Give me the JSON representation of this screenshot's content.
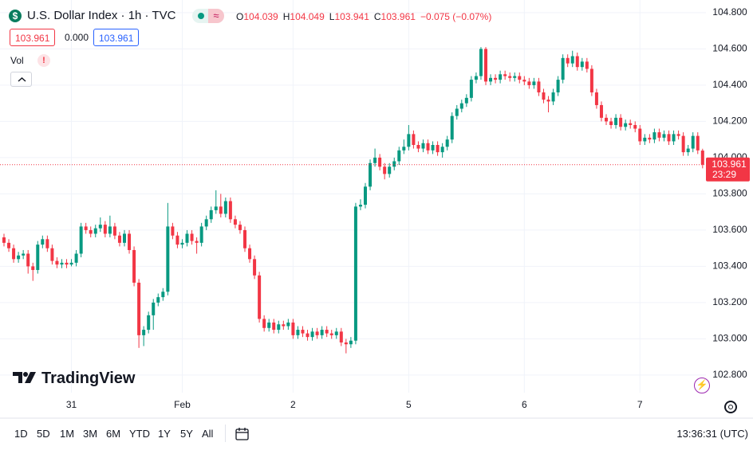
{
  "header": {
    "symbol_icon": "$",
    "title": "U.S. Dollar Index · 1h · TVC",
    "ohlc": [
      {
        "label": "O",
        "value": "104.039"
      },
      {
        "label": "H",
        "value": "104.049"
      },
      {
        "label": "L",
        "value": "103.941"
      },
      {
        "label": "C",
        "value": "103.961"
      }
    ],
    "change": "−0.075 (−0.07%)",
    "bid": "103.961",
    "spread": "0.000",
    "ask": "103.961",
    "volume_label": "Vol",
    "volume_warning": "!"
  },
  "logo": "TradingView",
  "toolbar": {
    "ranges": [
      "1D",
      "5D",
      "1M",
      "3M",
      "6M",
      "YTD",
      "1Y",
      "5Y",
      "All"
    ],
    "clock": "13:36:31 (UTC)"
  },
  "chart_data": {
    "type": "candlestick",
    "title": "U.S. Dollar Index · 1h · TVC",
    "up_color": "#089981",
    "down_color": "#f23645",
    "ylim": [
      102.703,
      104.87
    ],
    "yticks": [
      {
        "value": 102.8,
        "label": "102.800"
      },
      {
        "value": 103.0,
        "label": "103.000"
      },
      {
        "value": 103.2,
        "label": "103.200"
      },
      {
        "value": 103.4,
        "label": "103.400"
      },
      {
        "value": 103.6,
        "label": "103.600"
      },
      {
        "value": 103.8,
        "label": "103.800"
      },
      {
        "value": 104.0,
        "label": "104.000"
      },
      {
        "value": 104.2,
        "label": "104.200"
      },
      {
        "value": 104.4,
        "label": "104.400"
      },
      {
        "value": 104.6,
        "label": "104.600"
      },
      {
        "value": 104.8,
        "label": "104.800"
      }
    ],
    "last_price": {
      "label": "103.961",
      "countdown": "23:29"
    },
    "categories": [
      null,
      null,
      null,
      null,
      null,
      null,
      null,
      null,
      null,
      null,
      null,
      null,
      null,
      null,
      "31",
      null,
      null,
      null,
      null,
      null,
      null,
      null,
      null,
      null,
      null,
      null,
      null,
      null,
      null,
      null,
      null,
      null,
      null,
      null,
      null,
      null,
      null,
      "Feb",
      null,
      null,
      null,
      null,
      null,
      null,
      null,
      null,
      null,
      null,
      null,
      null,
      null,
      null,
      null,
      null,
      null,
      null,
      null,
      null,
      null,
      null,
      "2",
      null,
      null,
      null,
      null,
      null,
      null,
      null,
      null,
      null,
      null,
      null,
      null,
      null,
      null,
      null,
      null,
      null,
      null,
      null,
      null,
      null,
      null,
      null,
      "5",
      null,
      null,
      null,
      null,
      null,
      null,
      null,
      null,
      null,
      null,
      null,
      null,
      null,
      null,
      null,
      null,
      null,
      null,
      null,
      null,
      null,
      null,
      null,
      "6",
      null,
      null,
      null,
      null,
      null,
      null,
      null,
      null,
      null,
      null,
      null,
      null,
      null,
      null,
      null,
      null,
      null,
      null,
      null,
      null,
      null,
      null,
      null,
      "7",
      null,
      null,
      null,
      null,
      null,
      null,
      null,
      null,
      null,
      null,
      null,
      null,
      null
    ],
    "ohlc": [
      [
        103.56,
        103.58,
        103.51,
        103.53
      ],
      [
        103.53,
        103.55,
        103.48,
        103.5
      ],
      [
        103.5,
        103.52,
        103.42,
        103.44
      ],
      [
        103.44,
        103.48,
        103.42,
        103.46
      ],
      [
        103.46,
        103.49,
        103.44,
        103.47
      ],
      [
        103.47,
        103.49,
        103.36,
        103.4
      ],
      [
        103.4,
        103.42,
        103.32,
        103.38
      ],
      [
        103.38,
        103.54,
        103.36,
        103.52
      ],
      [
        103.52,
        103.57,
        103.5,
        103.55
      ],
      [
        103.55,
        103.57,
        103.48,
        103.5
      ],
      [
        103.5,
        103.52,
        103.41,
        103.43
      ],
      [
        103.43,
        103.45,
        103.39,
        103.41
      ],
      [
        103.41,
        103.44,
        103.39,
        103.42
      ],
      [
        103.42,
        103.44,
        103.39,
        103.41
      ],
      [
        103.41,
        103.44,
        103.4,
        103.42
      ],
      [
        103.42,
        103.49,
        103.4,
        103.47
      ],
      [
        103.47,
        103.64,
        103.45,
        103.62
      ],
      [
        103.62,
        103.64,
        103.58,
        103.6
      ],
      [
        103.6,
        103.62,
        103.56,
        103.58
      ],
      [
        103.58,
        103.63,
        103.56,
        103.61
      ],
      [
        103.61,
        103.67,
        103.59,
        103.63
      ],
      [
        103.63,
        103.65,
        103.56,
        103.58
      ],
      [
        103.58,
        103.68,
        103.56,
        103.62
      ],
      [
        103.62,
        103.64,
        103.55,
        103.57
      ],
      [
        103.57,
        103.59,
        103.51,
        103.53
      ],
      [
        103.53,
        103.6,
        103.51,
        103.58
      ],
      [
        103.58,
        103.6,
        103.47,
        103.49
      ],
      [
        103.49,
        103.51,
        103.29,
        103.31
      ],
      [
        103.31,
        103.33,
        102.95,
        103.02
      ],
      [
        103.02,
        103.07,
        102.96,
        103.05
      ],
      [
        103.05,
        103.15,
        103.03,
        103.13
      ],
      [
        103.13,
        103.22,
        103.05,
        103.2
      ],
      [
        103.2,
        103.25,
        103.18,
        103.23
      ],
      [
        103.23,
        103.28,
        103.21,
        103.26
      ],
      [
        103.26,
        103.75,
        103.24,
        103.62
      ],
      [
        103.62,
        103.64,
        103.55,
        103.57
      ],
      [
        103.57,
        103.59,
        103.5,
        103.52
      ],
      [
        103.52,
        103.55,
        103.5,
        103.53
      ],
      [
        103.53,
        103.6,
        103.51,
        103.58
      ],
      [
        103.58,
        103.6,
        103.52,
        103.54
      ],
      [
        103.54,
        103.56,
        103.47,
        103.53
      ],
      [
        103.53,
        103.64,
        103.51,
        103.62
      ],
      [
        103.62,
        103.68,
        103.6,
        103.66
      ],
      [
        103.66,
        103.73,
        103.64,
        103.71
      ],
      [
        103.71,
        103.82,
        103.69,
        103.73
      ],
      [
        103.73,
        103.8,
        103.67,
        103.69
      ],
      [
        103.69,
        103.78,
        103.67,
        103.76
      ],
      [
        103.76,
        103.78,
        103.64,
        103.66
      ],
      [
        103.66,
        103.68,
        103.61,
        103.63
      ],
      [
        103.63,
        103.65,
        103.58,
        103.6
      ],
      [
        103.6,
        103.62,
        103.48,
        103.5
      ],
      [
        103.5,
        103.52,
        103.42,
        103.44
      ],
      [
        103.44,
        103.46,
        103.33,
        103.35
      ],
      [
        103.35,
        103.37,
        103.09,
        103.11
      ],
      [
        103.11,
        103.13,
        103.04,
        103.06
      ],
      [
        103.06,
        103.11,
        103.04,
        103.09
      ],
      [
        103.09,
        103.11,
        103.03,
        103.05
      ],
      [
        103.05,
        103.1,
        103.03,
        103.08
      ],
      [
        103.08,
        103.1,
        103.05,
        103.07
      ],
      [
        103.07,
        103.11,
        103.05,
        103.09
      ],
      [
        103.09,
        103.11,
        103.0,
        103.02
      ],
      [
        103.02,
        103.07,
        103.0,
        103.05
      ],
      [
        103.05,
        103.07,
        103.01,
        103.03
      ],
      [
        103.03,
        103.05,
        102.99,
        103.01
      ],
      [
        103.01,
        103.06,
        102.99,
        103.04
      ],
      [
        103.04,
        103.06,
        103.0,
        103.02
      ],
      [
        103.02,
        103.07,
        103.0,
        103.05
      ],
      [
        103.05,
        103.07,
        103.01,
        103.03
      ],
      [
        103.03,
        103.05,
        103.0,
        103.02
      ],
      [
        103.02,
        103.06,
        103.0,
        103.04
      ],
      [
        103.04,
        103.06,
        102.96,
        102.98
      ],
      [
        102.98,
        103.0,
        102.92,
        102.97
      ],
      [
        102.97,
        103.01,
        102.95,
        102.99
      ],
      [
        102.99,
        103.75,
        102.97,
        103.73
      ],
      [
        103.73,
        103.77,
        103.71,
        103.74
      ],
      [
        103.74,
        103.86,
        103.72,
        103.84
      ],
      [
        103.84,
        103.99,
        103.82,
        103.97
      ],
      [
        103.97,
        104.05,
        103.95,
        104.0
      ],
      [
        104.0,
        104.02,
        103.93,
        103.95
      ],
      [
        103.95,
        103.97,
        103.88,
        103.91
      ],
      [
        103.91,
        103.97,
        103.89,
        103.95
      ],
      [
        103.95,
        104.0,
        103.93,
        103.98
      ],
      [
        103.98,
        104.06,
        103.96,
        104.04
      ],
      [
        104.04,
        104.1,
        104.02,
        104.06
      ],
      [
        104.06,
        104.18,
        104.04,
        104.13
      ],
      [
        104.13,
        104.15,
        104.05,
        104.07
      ],
      [
        104.07,
        104.09,
        104.03,
        104.05
      ],
      [
        104.05,
        104.1,
        104.03,
        104.08
      ],
      [
        104.08,
        104.1,
        104.02,
        104.04
      ],
      [
        104.04,
        104.09,
        104.02,
        104.07
      ],
      [
        104.07,
        104.09,
        104.01,
        104.03
      ],
      [
        104.03,
        104.08,
        104.0,
        104.06
      ],
      [
        104.06,
        104.12,
        104.04,
        104.1
      ],
      [
        104.1,
        104.25,
        104.08,
        104.23
      ],
      [
        104.23,
        104.29,
        104.21,
        104.27
      ],
      [
        104.27,
        104.32,
        104.25,
        104.3
      ],
      [
        104.3,
        104.35,
        104.28,
        104.33
      ],
      [
        104.33,
        104.45,
        104.31,
        104.43
      ],
      [
        104.43,
        104.47,
        104.41,
        104.45
      ],
      [
        104.45,
        104.61,
        104.43,
        104.6
      ],
      [
        104.6,
        104.61,
        104.4,
        104.42
      ],
      [
        104.42,
        104.46,
        104.4,
        104.44
      ],
      [
        104.44,
        104.46,
        104.41,
        104.43
      ],
      [
        104.43,
        104.48,
        104.41,
        104.46
      ],
      [
        104.46,
        104.48,
        104.43,
        104.45
      ],
      [
        104.45,
        104.47,
        104.42,
        104.44
      ],
      [
        104.44,
        104.47,
        104.42,
        104.45
      ],
      [
        104.45,
        104.47,
        104.41,
        104.43
      ],
      [
        104.43,
        104.45,
        104.4,
        104.42
      ],
      [
        104.42,
        104.44,
        104.38,
        104.4
      ],
      [
        104.4,
        104.44,
        104.38,
        104.42
      ],
      [
        104.42,
        104.44,
        104.34,
        104.36
      ],
      [
        104.36,
        104.38,
        104.3,
        104.32
      ],
      [
        104.32,
        104.34,
        104.25,
        104.31
      ],
      [
        104.31,
        104.38,
        104.29,
        104.36
      ],
      [
        104.36,
        104.45,
        104.34,
        104.43
      ],
      [
        104.43,
        104.57,
        104.41,
        104.55
      ],
      [
        104.55,
        104.57,
        104.5,
        104.52
      ],
      [
        104.52,
        104.59,
        104.5,
        104.56
      ],
      [
        104.56,
        104.58,
        104.48,
        104.5
      ],
      [
        104.5,
        104.55,
        104.48,
        104.53
      ],
      [
        104.53,
        104.55,
        104.47,
        104.49
      ],
      [
        104.49,
        104.51,
        104.34,
        104.36
      ],
      [
        104.36,
        104.38,
        104.27,
        104.29
      ],
      [
        104.29,
        104.31,
        104.2,
        104.22
      ],
      [
        104.22,
        104.24,
        104.18,
        104.2
      ],
      [
        104.2,
        104.22,
        104.16,
        104.18
      ],
      [
        104.18,
        104.24,
        104.16,
        104.22
      ],
      [
        104.22,
        104.24,
        104.15,
        104.17
      ],
      [
        104.17,
        104.21,
        104.15,
        104.19
      ],
      [
        104.19,
        104.21,
        104.16,
        104.18
      ],
      [
        104.18,
        104.2,
        104.14,
        104.16
      ],
      [
        104.16,
        104.18,
        104.07,
        104.09
      ],
      [
        104.09,
        104.13,
        104.07,
        104.11
      ],
      [
        104.11,
        104.13,
        104.08,
        104.1
      ],
      [
        104.1,
        104.16,
        104.08,
        104.14
      ],
      [
        104.14,
        104.16,
        104.09,
        104.11
      ],
      [
        104.11,
        104.15,
        104.09,
        104.13
      ],
      [
        104.13,
        104.15,
        104.07,
        104.09
      ],
      [
        104.09,
        104.15,
        104.07,
        104.13
      ],
      [
        104.13,
        104.15,
        104.1,
        104.12
      ],
      [
        104.12,
        104.14,
        104.01,
        104.03
      ],
      [
        104.03,
        104.07,
        104.01,
        104.05
      ],
      [
        104.05,
        104.14,
        104.03,
        104.12
      ],
      [
        104.12,
        104.14,
        104.02,
        104.04
      ],
      [
        104.039,
        104.049,
        103.941,
        103.961
      ]
    ]
  }
}
